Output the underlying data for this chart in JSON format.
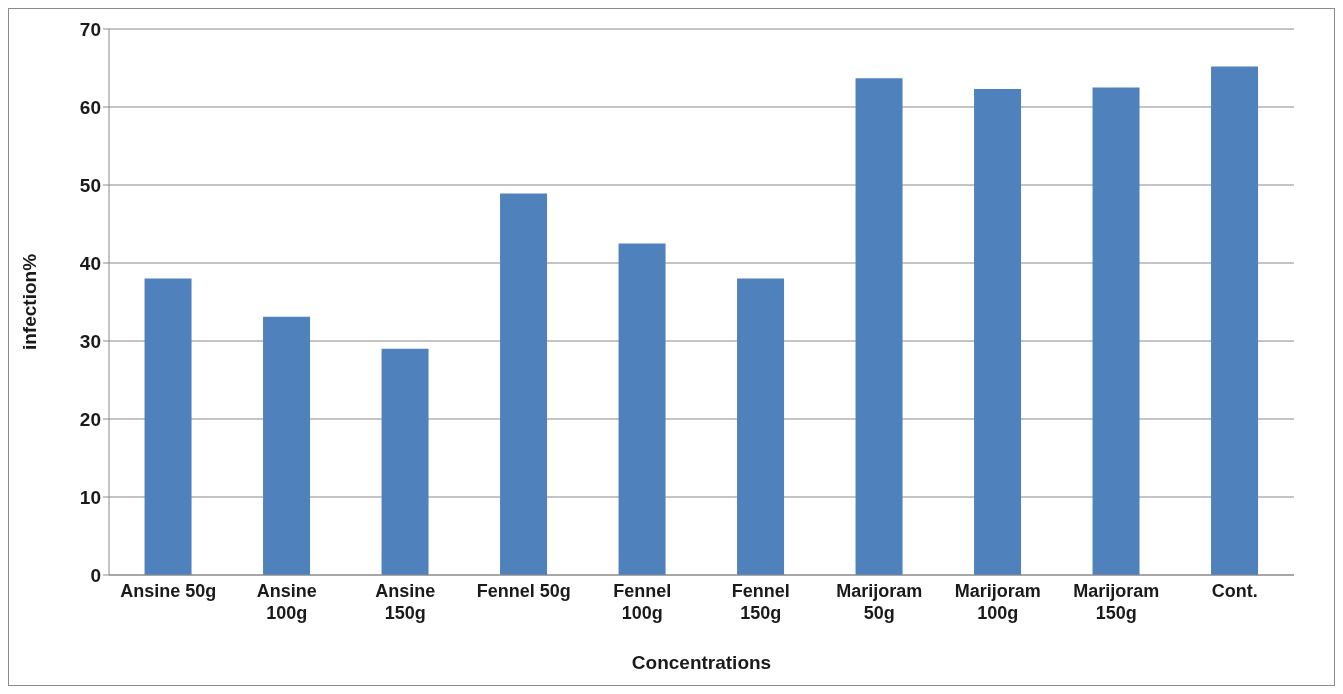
{
  "chart_data": {
    "type": "bar",
    "xlabel": "Concentrations",
    "ylabel": "infection%",
    "categories": [
      "Ansine 50g",
      "Ansine 100g",
      "Ansine 150g",
      "Fennel 50g",
      "Fennel 100g",
      "Fennel 150g",
      "Marijoram 50g",
      "Marijoram 100g",
      "Marijoram 150g",
      "Cont."
    ],
    "values": [
      38.0,
      33.1,
      29.0,
      48.9,
      42.5,
      38.0,
      63.7,
      62.3,
      62.5,
      65.2
    ],
    "color": "#4f81bd",
    "ylim": [
      0,
      70
    ],
    "yticks": [
      0,
      10,
      20,
      30,
      40,
      50,
      60,
      70
    ],
    "grid": "y",
    "legend": false
  }
}
